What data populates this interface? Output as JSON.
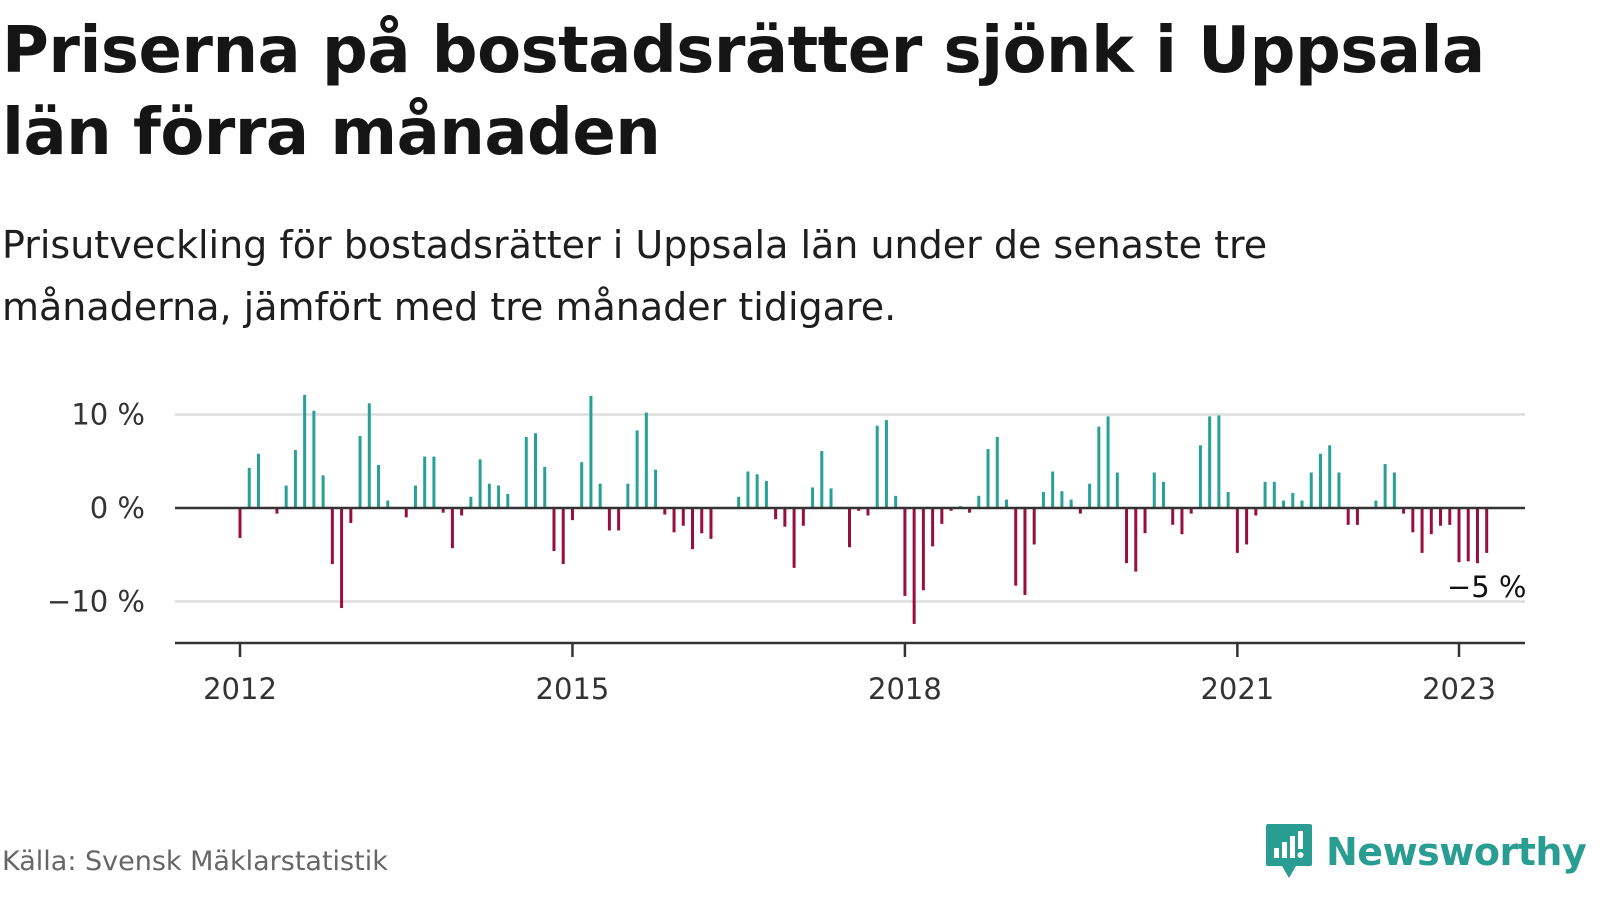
{
  "title": "Priserna på bostadsrätter sjönk i Uppsala län förra månaden",
  "subtitle": "Prisutveckling för bostadsrätter i Uppsala län under de senaste tre månaderna, jämfört med tre månader tidigare.",
  "source": "Källa: Svensk Mäklarstatistik",
  "brand": {
    "name": "Newsworthy",
    "icon": "newsworthy-logo-icon",
    "color": "#2a9d93"
  },
  "chart_data": {
    "type": "bar",
    "x_start": "2012-01",
    "interval": "month",
    "values": [
      -3.2,
      4.3,
      5.8,
      0,
      -0.6,
      2.4,
      6.2,
      12.1,
      10.4,
      3.5,
      -6.0,
      -10.7,
      -1.6,
      7.7,
      11.2,
      4.6,
      0.8,
      0,
      -1.0,
      2.4,
      5.5,
      5.5,
      -0.5,
      -4.3,
      -0.8,
      1.2,
      5.2,
      2.6,
      2.4,
      1.5,
      0,
      7.6,
      8.0,
      4.4,
      -4.6,
      -6.0,
      -1.3,
      4.9,
      12.0,
      2.6,
      -2.4,
      -2.4,
      2.6,
      8.3,
      10.2,
      4.1,
      -0.7,
      -2.6,
      -1.9,
      -4.4,
      -2.7,
      -3.3,
      0,
      0,
      1.2,
      3.9,
      3.6,
      2.9,
      -1.2,
      -2.0,
      -6.4,
      -1.9,
      2.2,
      6.1,
      2.1,
      0,
      -4.2,
      -0.3,
      -0.8,
      8.8,
      9.4,
      1.3,
      -9.4,
      -12.4,
      -8.8,
      -4.1,
      -1.7,
      -0.3,
      0.2,
      -0.5,
      1.3,
      6.3,
      7.6,
      0.9,
      -8.3,
      -9.3,
      -3.9,
      1.7,
      3.9,
      1.8,
      0.9,
      -0.6,
      2.6,
      8.7,
      9.8,
      3.8,
      -5.9,
      -6.8,
      -2.7,
      3.8,
      2.8,
      -1.8,
      -2.8,
      -0.6,
      6.7,
      9.8,
      9.9,
      1.7,
      -4.8,
      -3.9,
      -0.8,
      2.8,
      2.8,
      0.8,
      1.6,
      0.8,
      3.8,
      5.8,
      6.7,
      3.8,
      -1.8,
      -1.8,
      0,
      0.8,
      4.7,
      3.8,
      -0.6,
      -2.6,
      -4.8,
      -2.8,
      -1.9,
      -1.8,
      -5.8,
      -5.7,
      -5.9,
      -4.8
    ],
    "yticks": [
      -10,
      0,
      10
    ],
    "ytick_labels": [
      "−10 %",
      "0 %",
      "10 %"
    ],
    "ylim": [
      -14.5,
      12.5
    ],
    "xtick_values": [
      2012,
      2015,
      2018,
      2021,
      2023
    ],
    "xticks": [
      "2012",
      "2015",
      "2018",
      "2021",
      "2023"
    ],
    "annotation": "−5 %",
    "grid": true,
    "colors": {
      "positive": "#27a198",
      "negative": "#9a0d3f",
      "grid": "#dddddd",
      "axis": "#333333"
    }
  }
}
